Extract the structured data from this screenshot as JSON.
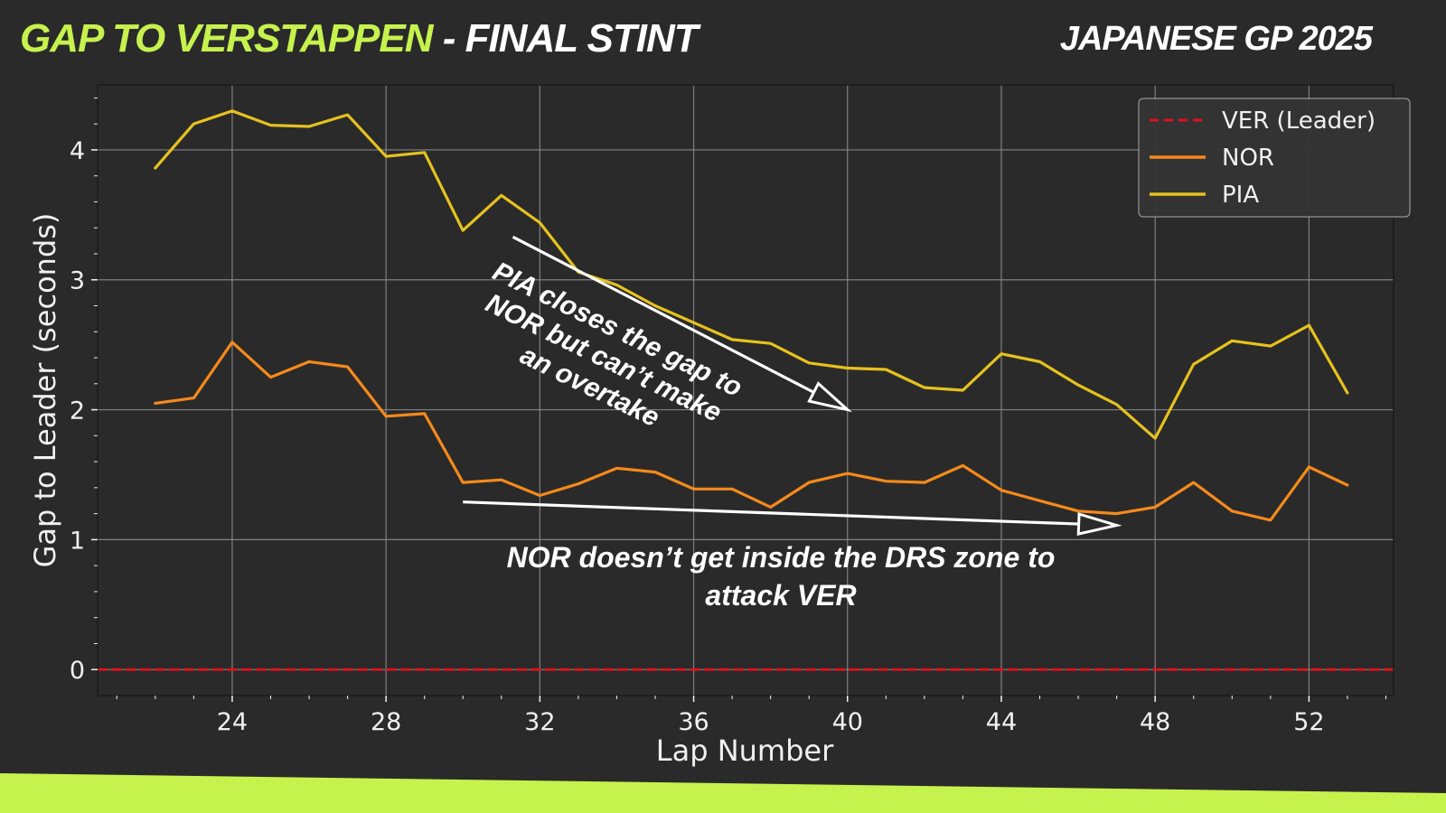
{
  "header": {
    "title_highlight": "GAP TO VERSTAPPEN",
    "title_rest": " - FINAL STINT",
    "event": "JAPANESE GP 2025"
  },
  "colors": {
    "background": "#2b2a2a",
    "accent": "#c6f24e",
    "ver": "#e8101a",
    "nor": "#f58a1c",
    "pia": "#e5c21f",
    "grid": "#8a8a8a",
    "text": "#f0f0f0"
  },
  "chart_data": {
    "type": "line",
    "xlabel": "Lap Number",
    "ylabel": "Gap to Leader (seconds)",
    "xlim": [
      20.5,
      54.2
    ],
    "ylim": [
      -0.2,
      4.5
    ],
    "xticks": [
      24,
      28,
      32,
      36,
      40,
      44,
      48,
      52
    ],
    "yticks": [
      0,
      1,
      2,
      3,
      4
    ],
    "grid": true,
    "legend_position": "top-right",
    "series": [
      {
        "name": "VER (Leader)",
        "style": "dashed",
        "color": "#e8101a",
        "x": [
          20.5,
          54.2
        ],
        "y": [
          0,
          0
        ]
      },
      {
        "name": "NOR",
        "style": "solid",
        "color": "#f58a1c",
        "x": [
          22,
          23,
          24,
          25,
          26,
          27,
          28,
          29,
          30,
          31,
          32,
          33,
          34,
          35,
          36,
          37,
          38,
          39,
          40,
          41,
          42,
          43,
          44,
          45,
          46,
          47,
          48,
          49,
          50,
          51,
          52,
          53
        ],
        "y": [
          2.05,
          2.09,
          2.52,
          2.25,
          2.37,
          2.33,
          1.95,
          1.97,
          1.44,
          1.46,
          1.34,
          1.43,
          1.55,
          1.52,
          1.39,
          1.39,
          1.25,
          1.44,
          1.51,
          1.45,
          1.44,
          1.57,
          1.38,
          1.3,
          1.22,
          1.2,
          1.25,
          1.44,
          1.22,
          1.15,
          1.56,
          1.42
        ]
      },
      {
        "name": "PIA",
        "style": "solid",
        "color": "#e5c21f",
        "x": [
          22,
          23,
          24,
          25,
          26,
          27,
          28,
          29,
          30,
          31,
          32,
          33,
          34,
          35,
          36,
          37,
          38,
          39,
          40,
          41,
          42,
          43,
          44,
          45,
          46,
          47,
          48,
          49,
          50,
          51,
          52,
          53
        ],
        "y": [
          3.86,
          4.2,
          4.3,
          4.19,
          4.18,
          4.27,
          3.95,
          3.98,
          3.38,
          3.65,
          3.44,
          3.06,
          2.96,
          2.8,
          2.67,
          2.54,
          2.51,
          2.36,
          2.32,
          2.31,
          2.17,
          2.15,
          2.43,
          2.37,
          2.19,
          2.04,
          1.78,
          2.35,
          2.53,
          2.49,
          2.65,
          2.13
        ]
      }
    ],
    "annotations": [
      {
        "text_lines": [
          "PIA closes the gap to",
          "NOR but can’t make",
          "an overtake"
        ],
        "arrow_from": [
          31.3,
          3.33
        ],
        "arrow_to": [
          40.0,
          2.0
        ]
      },
      {
        "text_lines": [
          "NOR doesn’t get inside the DRS zone to",
          "attack VER"
        ],
        "arrow_from": [
          30.0,
          1.29
        ],
        "arrow_to": [
          47.0,
          1.11
        ]
      }
    ]
  }
}
